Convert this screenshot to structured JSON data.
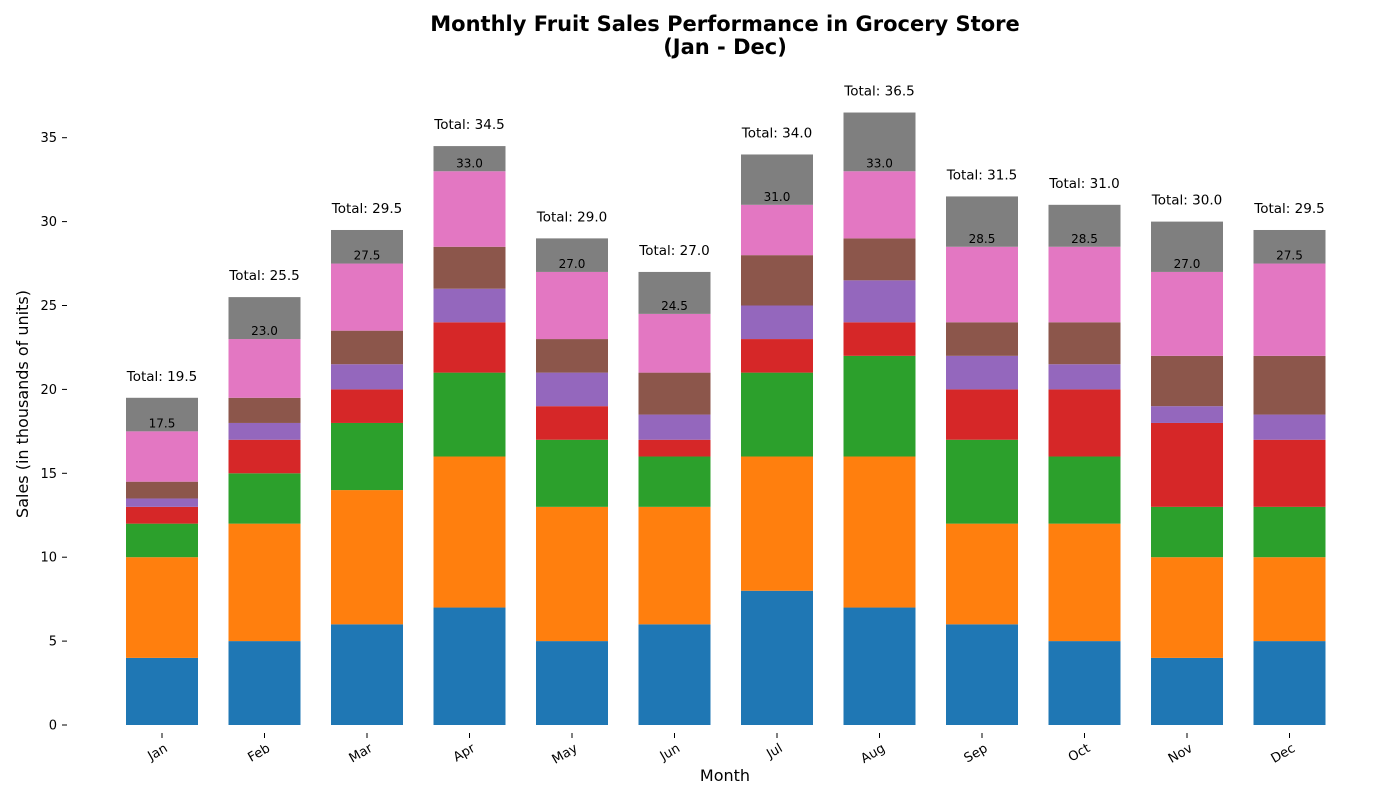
{
  "chart_data": {
    "type": "bar",
    "stacked": true,
    "title_line1": "Monthly Fruit Sales Performance in Grocery Store",
    "title_line2": "(Jan - Dec)",
    "xlabel": "Month",
    "ylabel": "Sales (in thousands of units)",
    "ylim": [
      0,
      37.5
    ],
    "yticks": [
      0,
      5,
      10,
      15,
      20,
      25,
      30,
      35
    ],
    "grid": false,
    "categories": [
      "Jan",
      "Feb",
      "Mar",
      "Apr",
      "May",
      "Jun",
      "Jul",
      "Aug",
      "Sep",
      "Oct",
      "Nov",
      "Dec"
    ],
    "series": [
      {
        "color": "#1f77b4",
        "values": [
          4,
          5,
          6,
          7,
          5,
          6,
          8,
          7,
          6,
          5,
          4,
          5
        ]
      },
      {
        "color": "#ff7f0e",
        "values": [
          6,
          7,
          8,
          9,
          8,
          7,
          8,
          9,
          6,
          7,
          6,
          5
        ]
      },
      {
        "color": "#2ca02c",
        "values": [
          2,
          3,
          4,
          5,
          4,
          3,
          5,
          6,
          5,
          4,
          3,
          3
        ]
      },
      {
        "color": "#d62728",
        "values": [
          1,
          2,
          2,
          3,
          2,
          1,
          2,
          2,
          3,
          4,
          5,
          4
        ]
      },
      {
        "color": "#9467bd",
        "values": [
          0.5,
          1,
          1.5,
          2,
          2,
          1.5,
          2,
          2.5,
          2,
          1.5,
          1,
          1.5
        ]
      },
      {
        "color": "#8c564b",
        "values": [
          1,
          1.5,
          2,
          2.5,
          2,
          2.5,
          3,
          2.5,
          2,
          2.5,
          3,
          3.5
        ]
      },
      {
        "color": "#e377c2",
        "values": [
          3,
          3.5,
          4,
          4.5,
          4,
          3.5,
          3,
          4,
          4.5,
          4.5,
          5,
          5.5
        ]
      },
      {
        "color": "#7f7f7f",
        "values": [
          2,
          2.5,
          2,
          1.5,
          2,
          2.5,
          3,
          3.5,
          3,
          2.5,
          3,
          2
        ]
      }
    ],
    "inner_labels": [
      "17.5",
      "23.0",
      "27.5",
      "33.0",
      "27.0",
      "24.5",
      "31.0",
      "33.0",
      "28.5",
      "28.5",
      "27.0",
      "27.5"
    ],
    "total_labels": [
      "Total: 19.5",
      "Total: 25.5",
      "Total: 29.5",
      "Total: 34.5",
      "Total: 29.0",
      "Total: 27.0",
      "Total: 34.0",
      "Total: 36.5",
      "Total: 31.5",
      "Total: 31.0",
      "Total: 30.0",
      "Total: 29.5"
    ]
  }
}
